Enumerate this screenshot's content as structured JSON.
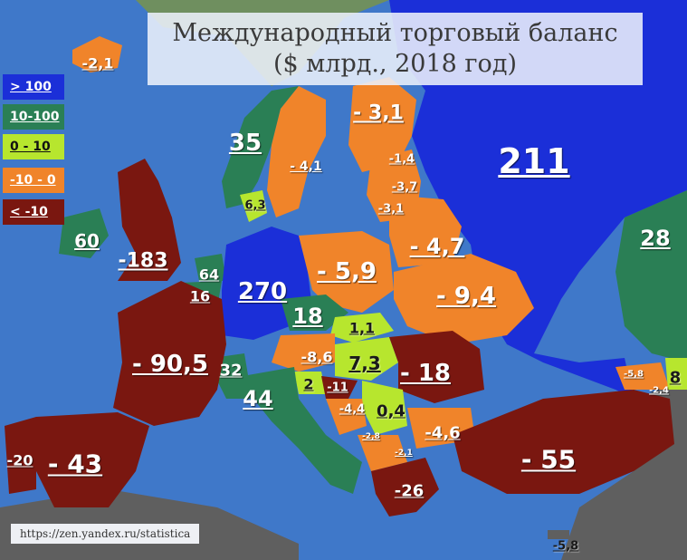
{
  "title": {
    "line1": "Международный торговый баланс",
    "line2": "($ млрд., 2018 год)"
  },
  "legend": [
    {
      "label": "> 100",
      "color": "#1b2fd8",
      "dark": false
    },
    {
      "label": "10-100",
      "color": "#2a7f55",
      "dark": false
    },
    {
      "label": "0 - 10",
      "color": "#b7e62e",
      "dark": true
    },
    {
      "label": "-10 - 0",
      "color": "#f0842a",
      "dark": false
    },
    {
      "label": "< -10",
      "color": "#7a1710",
      "dark": false
    }
  ],
  "countries": [
    {
      "value": "211",
      "size": 38,
      "dark": false
    },
    {
      "value": "270",
      "size": 26,
      "dark": false
    },
    {
      "value": "-183",
      "size": 22,
      "dark": false
    },
    {
      "value": "- 90,5",
      "size": 26,
      "dark": false
    },
    {
      "value": "- 43",
      "size": 28,
      "dark": false
    },
    {
      "value": "-20",
      "size": 16,
      "dark": false
    },
    {
      "value": "- 55",
      "size": 28,
      "dark": false
    },
    {
      "value": "-26",
      "size": 18,
      "dark": false
    },
    {
      "value": "- 18",
      "size": 26,
      "dark": false
    },
    {
      "value": "- 9,4",
      "size": 26,
      "dark": false
    },
    {
      "value": "- 5,9",
      "size": 26,
      "dark": false
    },
    {
      "value": "- 4,7",
      "size": 24,
      "dark": false
    },
    {
      "value": "- 3,1",
      "size": 22,
      "dark": false
    },
    {
      "value": "- 4,1",
      "size": 14,
      "dark": false
    },
    {
      "value": "35",
      "size": 26,
      "dark": false
    },
    {
      "value": "6,3",
      "size": 13,
      "dark": true
    },
    {
      "value": "60",
      "size": 20,
      "dark": false
    },
    {
      "value": "64",
      "size": 16,
      "dark": false
    },
    {
      "value": "16",
      "size": 16,
      "dark": false
    },
    {
      "value": "18",
      "size": 24,
      "dark": false
    },
    {
      "value": "1,1",
      "size": 16,
      "dark": true
    },
    {
      "value": "7,3",
      "size": 20,
      "dark": true
    },
    {
      "value": "-8,6",
      "size": 16,
      "dark": false
    },
    {
      "value": "2",
      "size": 16,
      "dark": true
    },
    {
      "value": "32",
      "size": 18,
      "dark": false
    },
    {
      "value": "44",
      "size": 24,
      "dark": false
    },
    {
      "value": "-11",
      "size": 13,
      "dark": false
    },
    {
      "value": "-4,4",
      "size": 13,
      "dark": false
    },
    {
      "value": "0,4",
      "size": 18,
      "dark": true
    },
    {
      "value": "-4,6",
      "size": 18,
      "dark": false
    },
    {
      "value": "-2,8",
      "size": 9,
      "dark": false
    },
    {
      "value": "-2,1",
      "size": 9,
      "dark": false
    },
    {
      "value": "-1,4",
      "size": 13,
      "dark": false
    },
    {
      "value": "-3,7",
      "size": 13,
      "dark": false
    },
    {
      "value": "-3,1",
      "size": 13,
      "dark": false
    },
    {
      "value": "28",
      "size": 24,
      "dark": false
    },
    {
      "value": "8",
      "size": 18,
      "dark": true
    },
    {
      "value": "-5,8",
      "size": 10,
      "dark": false
    },
    {
      "value": "-2,4",
      "size": 10,
      "dark": false
    },
    {
      "value": "-2,1",
      "size": 16,
      "dark": false
    },
    {
      "value": "-5,8",
      "size": 13,
      "dark": true
    }
  ],
  "source": "https://zen.yandex.ru/statistica"
}
